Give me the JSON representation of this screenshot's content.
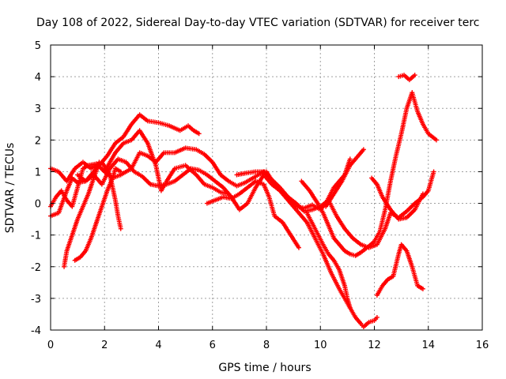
{
  "chart_data": {
    "type": "scatter",
    "title": "Day 108 of 2022, Sidereal Day-to-day VTEC variation (SDTVAR) for receiver terc",
    "xlabel": "GPS time / hours",
    "ylabel": "SDTVAR / TECUs",
    "xlim": [
      0,
      16
    ],
    "ylim": [
      -4,
      5
    ],
    "x_ticks": [
      "0",
      "2",
      "4",
      "6",
      "8",
      "10",
      "12",
      "14",
      "16"
    ],
    "y_ticks": [
      "-4",
      "-3",
      "-2",
      "-1",
      "0",
      "1",
      "2",
      "3",
      "4",
      "5"
    ],
    "grid": true,
    "marker": "+",
    "color": "#ff0000",
    "series": [
      {
        "points": [
          [
            0.0,
            1.1
          ],
          [
            0.3,
            1.0
          ],
          [
            0.6,
            0.7
          ],
          [
            0.9,
            1.1
          ],
          [
            1.2,
            1.3
          ],
          [
            1.5,
            1.1
          ],
          [
            1.8,
            1.2
          ],
          [
            2.1,
            1.5
          ],
          [
            2.4,
            1.9
          ],
          [
            2.7,
            2.1
          ],
          [
            3.0,
            2.5
          ],
          [
            3.3,
            2.8
          ],
          [
            3.6,
            2.6
          ],
          [
            4.0,
            2.55
          ],
          [
            4.4,
            2.45
          ],
          [
            4.8,
            2.3
          ],
          [
            5.1,
            2.45
          ],
          [
            5.3,
            2.3
          ],
          [
            5.5,
            2.2
          ]
        ]
      },
      {
        "points": [
          [
            0.0,
            -0.1
          ],
          [
            0.2,
            0.2
          ],
          [
            0.4,
            0.4
          ],
          [
            0.6,
            0.1
          ],
          [
            0.8,
            -0.1
          ],
          [
            1.0,
            0.5
          ],
          [
            1.2,
            1.1
          ],
          [
            1.4,
            1.2
          ],
          [
            1.7,
            1.25
          ],
          [
            2.0,
            1.0
          ],
          [
            2.3,
            0.8
          ],
          [
            2.6,
            0.9
          ],
          [
            3.0,
            1.1
          ],
          [
            3.3,
            1.6
          ],
          [
            3.6,
            1.5
          ],
          [
            3.9,
            1.3
          ],
          [
            4.2,
            1.6
          ],
          [
            4.6,
            1.6
          ],
          [
            5.0,
            1.75
          ],
          [
            5.4,
            1.7
          ],
          [
            5.7,
            1.55
          ],
          [
            6.0,
            1.3
          ],
          [
            6.3,
            0.9
          ],
          [
            6.6,
            0.7
          ],
          [
            6.9,
            0.55
          ],
          [
            7.2,
            0.65
          ],
          [
            7.6,
            0.85
          ],
          [
            7.9,
            1.0
          ],
          [
            8.2,
            0.75
          ],
          [
            8.5,
            0.5
          ],
          [
            8.8,
            0.2
          ],
          [
            9.1,
            -0.1
          ],
          [
            9.4,
            -0.15
          ],
          [
            9.7,
            -0.05
          ],
          [
            10.0,
            -0.2
          ],
          [
            10.2,
            0.0
          ],
          [
            10.5,
            0.5
          ],
          [
            10.7,
            0.7
          ],
          [
            10.9,
            0.9
          ],
          [
            11.1,
            1.4
          ]
        ]
      },
      {
        "points": [
          [
            0.0,
            -0.4
          ],
          [
            0.3,
            -0.3
          ],
          [
            0.6,
            0.4
          ],
          [
            0.8,
            0.8
          ],
          [
            1.0,
            0.65
          ],
          [
            1.3,
            0.7
          ],
          [
            1.6,
            0.9
          ],
          [
            1.9,
            0.6
          ],
          [
            2.2,
            1.1
          ],
          [
            2.5,
            1.4
          ],
          [
            2.8,
            1.3
          ],
          [
            3.1,
            1.0
          ],
          [
            3.4,
            0.85
          ],
          [
            3.7,
            0.6
          ],
          [
            4.0,
            0.55
          ],
          [
            4.3,
            0.6
          ],
          [
            4.6,
            0.7
          ],
          [
            4.9,
            0.9
          ],
          [
            5.2,
            1.1
          ],
          [
            5.5,
            1.05
          ],
          [
            5.8,
            0.9
          ],
          [
            6.1,
            0.7
          ],
          [
            6.4,
            0.5
          ],
          [
            6.7,
            0.2
          ],
          [
            7.0,
            -0.2
          ],
          [
            7.3,
            0.0
          ],
          [
            7.6,
            0.5
          ],
          [
            7.9,
            0.9
          ],
          [
            8.2,
            0.6
          ],
          [
            8.5,
            0.4
          ],
          [
            8.8,
            0.2
          ],
          [
            9.1,
            0.0
          ],
          [
            9.4,
            -0.25
          ],
          [
            9.7,
            -0.2
          ],
          [
            10.0,
            -0.1
          ],
          [
            10.3,
            0.1
          ],
          [
            10.6,
            -0.4
          ],
          [
            10.9,
            -0.8
          ],
          [
            11.2,
            -1.1
          ],
          [
            11.5,
            -1.3
          ],
          [
            11.8,
            -1.4
          ],
          [
            12.1,
            -1.3
          ],
          [
            12.4,
            -0.8
          ],
          [
            12.6,
            -0.3
          ],
          [
            12.9,
            -0.45
          ],
          [
            13.2,
            -0.25
          ],
          [
            13.5,
            0.0
          ],
          [
            13.8,
            0.2
          ],
          [
            14.0,
            0.4
          ],
          [
            14.2,
            1.0
          ]
        ]
      },
      {
        "points": [
          [
            0.5,
            -2.0
          ],
          [
            0.6,
            -1.5
          ],
          [
            0.8,
            -1.0
          ],
          [
            1.0,
            -0.5
          ],
          [
            1.2,
            -0.1
          ],
          [
            1.4,
            0.3
          ],
          [
            1.6,
            0.8
          ],
          [
            1.8,
            1.3
          ]
        ]
      },
      {
        "points": [
          [
            0.9,
            -1.8
          ],
          [
            1.1,
            -1.7
          ],
          [
            1.3,
            -1.5
          ],
          [
            1.5,
            -1.1
          ],
          [
            1.7,
            -0.6
          ],
          [
            1.9,
            -0.1
          ],
          [
            2.1,
            0.4
          ],
          [
            2.3,
            0.8
          ],
          [
            2.4,
            1.1
          ],
          [
            2.6,
            1.0
          ]
        ]
      },
      {
        "points": [
          [
            1.0,
            0.9
          ],
          [
            1.3,
            0.7
          ],
          [
            1.6,
            1.0
          ],
          [
            1.9,
            1.3
          ],
          [
            2.2,
            0.9
          ],
          [
            2.4,
            0.1
          ],
          [
            2.5,
            -0.4
          ],
          [
            2.6,
            -0.8
          ]
        ]
      },
      {
        "points": [
          [
            2.0,
            1.0
          ],
          [
            2.4,
            1.6
          ],
          [
            2.7,
            1.9
          ],
          [
            3.0,
            2.0
          ],
          [
            3.3,
            2.3
          ],
          [
            3.6,
            1.9
          ],
          [
            3.9,
            1.2
          ],
          [
            4.1,
            0.4
          ],
          [
            4.3,
            0.7
          ],
          [
            4.6,
            1.1
          ],
          [
            5.0,
            1.2
          ],
          [
            5.4,
            0.9
          ],
          [
            5.7,
            0.6
          ],
          [
            6.0,
            0.5
          ],
          [
            6.3,
            0.35
          ],
          [
            6.6,
            0.3
          ]
        ]
      },
      {
        "points": [
          [
            5.8,
            0.0
          ],
          [
            6.1,
            0.1
          ],
          [
            6.4,
            0.2
          ],
          [
            6.7,
            0.15
          ],
          [
            7.0,
            0.3
          ],
          [
            7.3,
            0.5
          ],
          [
            7.6,
            0.7
          ],
          [
            7.9,
            0.6
          ],
          [
            8.1,
            0.2
          ],
          [
            8.3,
            -0.4
          ],
          [
            8.6,
            -0.6
          ],
          [
            8.9,
            -1.0
          ],
          [
            9.2,
            -1.4
          ]
        ]
      },
      {
        "points": [
          [
            6.9,
            0.9
          ],
          [
            7.2,
            0.95
          ],
          [
            7.6,
            1.0
          ],
          [
            8.0,
            1.0
          ],
          [
            8.3,
            0.6
          ],
          [
            8.6,
            0.3
          ],
          [
            8.9,
            0.0
          ],
          [
            9.2,
            -0.3
          ],
          [
            9.5,
            -0.6
          ],
          [
            9.8,
            -1.1
          ],
          [
            10.1,
            -1.6
          ],
          [
            10.4,
            -2.2
          ],
          [
            10.7,
            -2.7
          ],
          [
            10.9,
            -3.0
          ],
          [
            11.1,
            -3.3
          ],
          [
            11.3,
            -3.6
          ],
          [
            11.5,
            -3.8
          ],
          [
            11.6,
            -3.9
          ],
          [
            11.8,
            -3.75
          ],
          [
            12.0,
            -3.7
          ],
          [
            12.1,
            -3.6
          ]
        ]
      },
      {
        "points": [
          [
            9.3,
            0.7
          ],
          [
            9.6,
            0.4
          ],
          [
            9.9,
            0.0
          ],
          [
            10.1,
            -0.3
          ],
          [
            10.3,
            -0.7
          ],
          [
            10.5,
            -1.1
          ],
          [
            10.7,
            -1.3
          ],
          [
            10.9,
            -1.5
          ],
          [
            11.1,
            -1.6
          ],
          [
            11.3,
            -1.65
          ],
          [
            11.5,
            -1.55
          ],
          [
            11.8,
            -1.35
          ],
          [
            12.0,
            -1.2
          ],
          [
            12.2,
            -0.9
          ],
          [
            12.4,
            -0.2
          ],
          [
            12.6,
            0.7
          ],
          [
            12.8,
            1.5
          ],
          [
            13.0,
            2.2
          ],
          [
            13.2,
            3.0
          ],
          [
            13.4,
            3.5
          ],
          [
            13.6,
            2.9
          ],
          [
            13.8,
            2.5
          ],
          [
            14.0,
            2.2
          ],
          [
            14.3,
            2.0
          ]
        ]
      },
      {
        "points": [
          [
            9.5,
            -0.3
          ],
          [
            9.8,
            -0.8
          ],
          [
            10.1,
            -1.3
          ],
          [
            10.3,
            -1.6
          ],
          [
            10.5,
            -1.8
          ],
          [
            10.7,
            -2.1
          ],
          [
            10.9,
            -2.6
          ],
          [
            11.0,
            -3.0
          ],
          [
            11.1,
            -3.3
          ]
        ]
      },
      {
        "points": [
          [
            10.2,
            -0.1
          ],
          [
            10.5,
            0.3
          ],
          [
            10.8,
            0.7
          ],
          [
            11.1,
            1.2
          ],
          [
            11.4,
            1.5
          ],
          [
            11.6,
            1.7
          ]
        ]
      },
      {
        "points": [
          [
            11.9,
            0.8
          ],
          [
            12.1,
            0.6
          ],
          [
            12.3,
            0.2
          ],
          [
            12.6,
            -0.2
          ],
          [
            12.9,
            -0.5
          ],
          [
            13.2,
            -0.45
          ],
          [
            13.5,
            -0.2
          ],
          [
            13.8,
            0.3
          ]
        ]
      },
      {
        "points": [
          [
            12.1,
            -2.9
          ],
          [
            12.3,
            -2.6
          ],
          [
            12.5,
            -2.4
          ],
          [
            12.7,
            -2.3
          ],
          [
            12.9,
            -1.6
          ],
          [
            13.0,
            -1.3
          ],
          [
            13.2,
            -1.5
          ],
          [
            13.4,
            -2.0
          ],
          [
            13.6,
            -2.6
          ],
          [
            13.8,
            -2.7
          ]
        ]
      },
      {
        "points": [
          [
            12.9,
            4.0
          ],
          [
            13.1,
            4.05
          ],
          [
            13.3,
            3.9
          ],
          [
            13.5,
            4.05
          ]
        ]
      }
    ]
  }
}
